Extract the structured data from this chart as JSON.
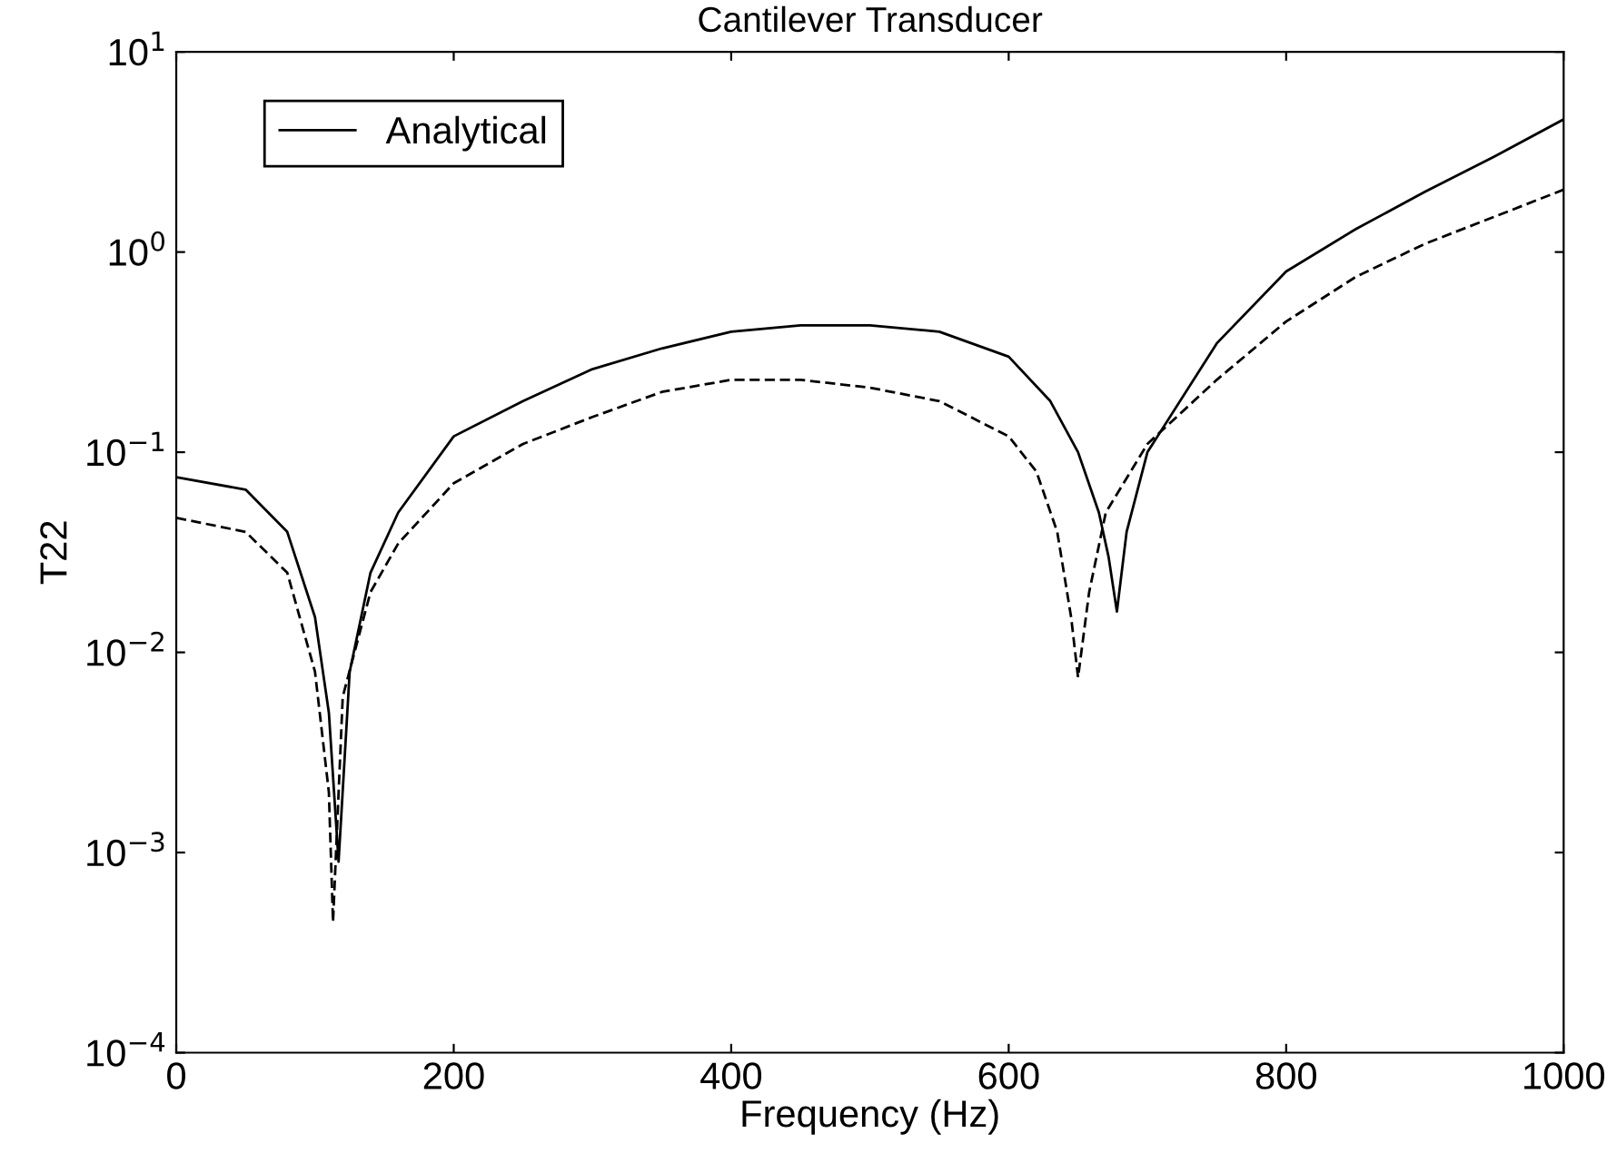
{
  "chart_data": {
    "type": "line",
    "title": "Cantilever Transducer",
    "xlabel": "Frequency (Hz)",
    "ylabel": "T22",
    "log": "y",
    "grid": false,
    "legend": "top left",
    "xlim": [
      0,
      1000
    ],
    "xticks": [
      0,
      200,
      400,
      600,
      800,
      1000
    ],
    "ylim": [
      0.0001,
      10
    ],
    "yticks": [
      {
        "value": 0.0001,
        "label": "10$^{−4}$"
      },
      {
        "value": 0.001,
        "label": "10$^{−3}$"
      },
      {
        "value": 0.01,
        "label": "10$^{−2}$"
      },
      {
        "value": 0.1,
        "label": "10$^{−1}$"
      },
      {
        "value": 1,
        "label": "10$^{0}$"
      },
      {
        "value": 10,
        "label": "10$^{1}$"
      }
    ],
    "series": [
      {
        "name": "Analytical",
        "color": "#000000",
        "line_style": "solid",
        "x": [
          0,
          50,
          80,
          100,
          110,
          117,
          125,
          140,
          160,
          200,
          250,
          300,
          350,
          400,
          450,
          500,
          550,
          600,
          630,
          650,
          665,
          672,
          678,
          685,
          700,
          750,
          800,
          850,
          900,
          950,
          1000
        ],
        "values": [
          0.075,
          0.065,
          0.04,
          0.015,
          0.005,
          0.0009,
          0.008,
          0.025,
          0.05,
          0.12,
          0.18,
          0.26,
          0.33,
          0.4,
          0.43,
          0.43,
          0.4,
          0.3,
          0.18,
          0.1,
          0.05,
          0.03,
          0.016,
          0.04,
          0.1,
          0.35,
          0.8,
          1.3,
          2.0,
          3.0,
          4.6
        ]
      },
      {
        "color": "#000000",
        "line_style": "dashed",
        "x": [
          0,
          50,
          80,
          100,
          110,
          113,
          120,
          140,
          160,
          200,
          250,
          300,
          350,
          400,
          450,
          500,
          550,
          600,
          620,
          635,
          645,
          650,
          658,
          670,
          700,
          750,
          800,
          850,
          900,
          950,
          1000
        ],
        "values": [
          0.047,
          0.04,
          0.025,
          0.008,
          0.002,
          0.00045,
          0.006,
          0.02,
          0.035,
          0.07,
          0.11,
          0.15,
          0.2,
          0.23,
          0.23,
          0.21,
          0.18,
          0.12,
          0.08,
          0.04,
          0.015,
          0.0075,
          0.02,
          0.05,
          0.11,
          0.23,
          0.45,
          0.75,
          1.1,
          1.5,
          2.05
        ]
      }
    ]
  }
}
